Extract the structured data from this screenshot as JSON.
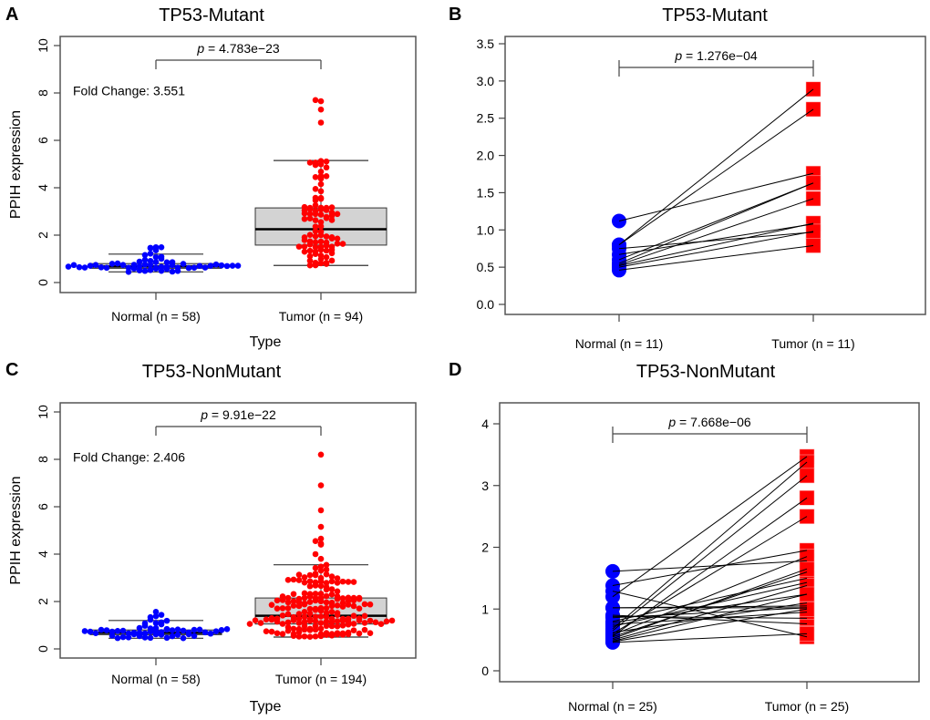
{
  "chart_data": [
    {
      "panel": "A",
      "type": "scatter",
      "subtype": "beeswarm-boxplot",
      "title": "TP53-Mutant",
      "xlabel": "Type",
      "ylabel": "PPIH expression",
      "ylim": [
        0,
        10
      ],
      "yticks": [
        "0",
        "2",
        "4",
        "6",
        "8",
        "10"
      ],
      "categories": [
        "Normal (n = 58)",
        "Tumor (n = 94)"
      ],
      "annotation_p": "p = 4.783e−23",
      "annotation_fc": "Fold Change: 3.551",
      "series": [
        {
          "name": "Normal",
          "color": "#0000ff",
          "n": 58,
          "box": {
            "q1": 0.6,
            "median": 0.68,
            "q3": 0.8,
            "whisker_low": 0.45,
            "whisker_high": 1.2
          },
          "max": 1.62,
          "min": 0.45
        },
        {
          "name": "Tumor",
          "color": "#ff0000",
          "n": 94,
          "box": {
            "q1": 1.58,
            "median": 2.25,
            "q3": 3.15,
            "whisker_low": 0.72,
            "whisker_high": 5.15
          },
          "outliers": [
            6.75,
            7.3,
            7.65,
            7.7
          ],
          "min": 0.7
        }
      ]
    },
    {
      "panel": "B",
      "type": "line",
      "subtype": "paired",
      "title": "TP53-Mutant",
      "ylim": [
        0,
        3.5
      ],
      "yticks": [
        "0.0",
        "0.5",
        "1.0",
        "1.5",
        "2.0",
        "2.5",
        "3.0",
        "3.5"
      ],
      "categories": [
        "Normal (n = 11)",
        "Tumor (n = 11)"
      ],
      "annotation_p": "p = 1.276e−04",
      "series": [
        {
          "name": "Normal",
          "color": "#0000ff",
          "values": [
            1.12,
            0.8,
            0.8,
            0.75,
            0.67,
            0.6,
            0.55,
            0.53,
            0.52,
            0.5,
            0.46
          ]
        },
        {
          "name": "Tumor",
          "color": "#ff0000",
          "values": [
            1.76,
            2.89,
            2.62,
            0.97,
            1.08,
            1.63,
            1.63,
            1.42,
            1.09,
            0.98,
            0.79
          ]
        }
      ]
    },
    {
      "panel": "C",
      "type": "scatter",
      "subtype": "beeswarm-boxplot",
      "title": "TP53-NonMutant",
      "xlabel": "Type",
      "ylabel": "PPIH expression",
      "ylim": [
        0,
        10
      ],
      "yticks": [
        "0",
        "2",
        "4",
        "6",
        "8",
        "10"
      ],
      "categories": [
        "Normal (n = 58)",
        "Tumor (n = 194)"
      ],
      "annotation_p": "p = 9.91e−22",
      "annotation_fc": "Fold Change: 2.406",
      "series": [
        {
          "name": "Normal",
          "color": "#0000ff",
          "n": 58,
          "box": {
            "q1": 0.6,
            "median": 0.68,
            "q3": 0.8,
            "whisker_low": 0.45,
            "whisker_high": 1.2
          },
          "max": 1.62,
          "min": 0.45
        },
        {
          "name": "Tumor",
          "color": "#ff0000",
          "n": 194,
          "box": {
            "q1": 1.05,
            "median": 1.4,
            "q3": 2.15,
            "whisker_low": 0.5,
            "whisker_high": 3.55
          },
          "outliers": [
            3.8,
            4.0,
            4.4,
            4.45,
            4.55,
            4.65,
            5.15,
            5.85,
            6.9,
            8.2
          ],
          "min": 0.5
        }
      ]
    },
    {
      "panel": "D",
      "type": "line",
      "subtype": "paired",
      "title": "TP53-NonMutant",
      "ylim": [
        0,
        4
      ],
      "yticks": [
        "0",
        "1",
        "2",
        "3",
        "4"
      ],
      "categories": [
        "Normal (n = 25)",
        "Tumor (n = 25)"
      ],
      "annotation_p": "p = 7.668e−06",
      "series": [
        {
          "name": "Normal",
          "color": "#0000ff",
          "values": [
            1.61,
            1.38,
            1.29,
            1.2,
            1.02,
            1.02,
            0.9,
            0.88,
            0.86,
            0.8,
            0.78,
            0.75,
            0.72,
            0.68,
            0.65,
            0.62,
            0.6,
            0.58,
            0.56,
            0.55,
            0.52,
            0.5,
            0.48,
            0.47,
            0.46
          ]
        },
        {
          "name": "Tumor",
          "color": "#ff0000",
          "values": [
            1.78,
            1.95,
            0.55,
            3.47,
            1.05,
            1.02,
            0.76,
            0.85,
            1.02,
            1.5,
            1.24,
            0.95,
            1.43,
            3.38,
            3.16,
            1.1,
            2.5,
            1.85,
            2.8,
            1.6,
            1.65,
            1.38,
            1.24,
            1.0,
            0.6
          ]
        }
      ]
    }
  ]
}
